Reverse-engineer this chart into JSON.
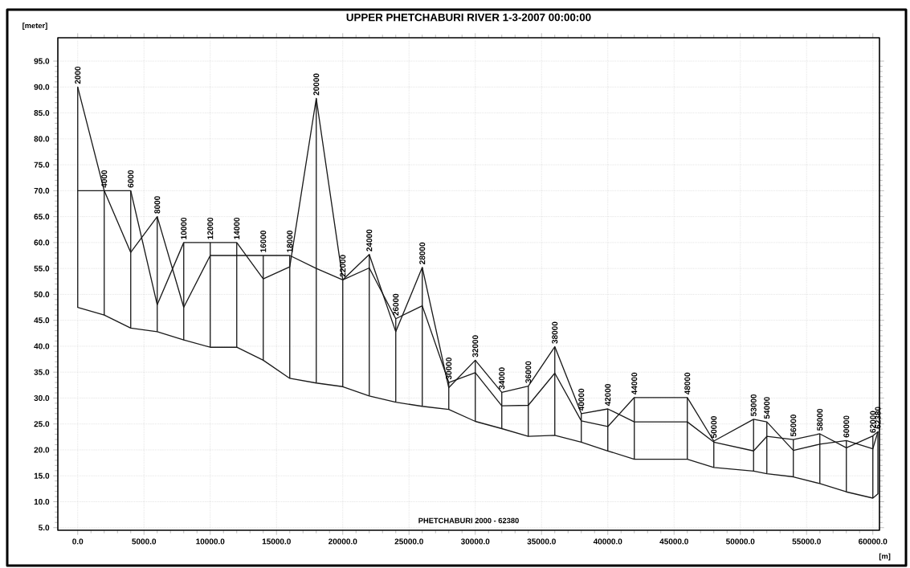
{
  "chart_data": {
    "type": "line",
    "title": "UPPER PHETCHABURI RIVER 1-3-2007 00:00:00",
    "xlabel": "[m]",
    "ylabel": "[meter]",
    "x": [
      0,
      2000,
      4000,
      6000,
      8000,
      10000,
      12000,
      14000,
      16000,
      18000,
      20000,
      22000,
      24000,
      26000,
      28000,
      30000,
      32000,
      34000,
      36000,
      38000,
      40000,
      42000,
      46000,
      48000,
      51000,
      52000,
      54000,
      56000,
      58000,
      60000,
      60380
    ],
    "series": [
      {
        "color": "#1a1a1a",
        "values": [
          47.5,
          46,
          43.5,
          42.8,
          41.2,
          39.8,
          39.8,
          37.3,
          33.8,
          32.9,
          32.2,
          30.4,
          29.2,
          28.4,
          27.8,
          25.5,
          24.1,
          22.6,
          22.8,
          21.5,
          19.8,
          18.2,
          18.2,
          16.6,
          15.9,
          15.4,
          14.8,
          13.5,
          11.9,
          10.7,
          11.5
        ]
      },
      {
        "color": "#1a1a1a",
        "values": [
          90,
          70,
          58.1,
          65,
          47.5,
          57.5,
          57.5,
          57.5,
          57.5,
          55,
          52.8,
          57.7,
          42.8,
          55.2,
          32.0,
          37.3,
          31.1,
          32.3,
          39.9,
          27.0,
          27.9,
          25.4,
          25.4,
          21.5,
          19.8,
          22.6,
          22.0,
          23.1,
          20.4,
          22.7,
          23.5
        ]
      },
      {
        "color": "#1a1a1a",
        "values": [
          70,
          70,
          70,
          48,
          60,
          60,
          60,
          53,
          55.3,
          87.8,
          52.8,
          55.1,
          45.3,
          47.8,
          33.0,
          34.9,
          28.5,
          28.6,
          34.8,
          25.6,
          24.5,
          30.1,
          30.1,
          21.7,
          25.9,
          25.4,
          19.9,
          21.1,
          21.8,
          20.2,
          23.5
        ]
      }
    ],
    "annotations": [
      {
        "text": "2000",
        "x": 0,
        "y": 90
      },
      {
        "text": "4000",
        "x": 2000,
        "y": 70
      },
      {
        "text": "6000",
        "x": 4000,
        "y": 70
      },
      {
        "text": "8000",
        "x": 6000,
        "y": 65
      },
      {
        "text": "10000",
        "x": 8000,
        "y": 60
      },
      {
        "text": "12000",
        "x": 10000,
        "y": 60
      },
      {
        "text": "14000",
        "x": 12000,
        "y": 60
      },
      {
        "text": "16000",
        "x": 14000,
        "y": 57.5
      },
      {
        "text": "18000",
        "x": 16000,
        "y": 57.5
      },
      {
        "text": "20000",
        "x": 18000,
        "y": 87.8
      },
      {
        "text": "22000",
        "x": 20000,
        "y": 52.8
      },
      {
        "text": "24000",
        "x": 22000,
        "y": 57.7
      },
      {
        "text": "26000",
        "x": 24000,
        "y": 45.3
      },
      {
        "text": "28000",
        "x": 26000,
        "y": 55.2
      },
      {
        "text": "30000",
        "x": 28000,
        "y": 33.0
      },
      {
        "text": "32000",
        "x": 30000,
        "y": 37.3
      },
      {
        "text": "34000",
        "x": 32000,
        "y": 31.1
      },
      {
        "text": "36000",
        "x": 34000,
        "y": 32.3
      },
      {
        "text": "38000",
        "x": 36000,
        "y": 39.9
      },
      {
        "text": "40000",
        "x": 38000,
        "y": 27.0
      },
      {
        "text": "42000",
        "x": 40000,
        "y": 27.9
      },
      {
        "text": "44000",
        "x": 42000,
        "y": 30.1
      },
      {
        "text": "48000",
        "x": 46000,
        "y": 30.1
      },
      {
        "text": "50000",
        "x": 48000,
        "y": 21.7
      },
      {
        "text": "53000",
        "x": 51000,
        "y": 25.9
      },
      {
        "text": "54000",
        "x": 52000,
        "y": 25.4
      },
      {
        "text": "56000",
        "x": 54000,
        "y": 22.0
      },
      {
        "text": "58000",
        "x": 56000,
        "y": 23.1
      },
      {
        "text": "60000",
        "x": 58000,
        "y": 21.8
      },
      {
        "text": "62000",
        "x": 60000,
        "y": 22.7
      },
      {
        "text": "62380",
        "x": 60380,
        "y": 23.5
      },
      "PHETCHABURI 2000 - 62380"
    ],
    "xlim": [
      -1500,
      60500
    ],
    "ylim": [
      4.5,
      99.5
    ],
    "xticks": [
      {
        "value": 0,
        "label": "0.0"
      },
      {
        "value": 5000,
        "label": "5000.0"
      },
      {
        "value": 10000,
        "label": "10000.0"
      },
      {
        "value": 15000,
        "label": "15000.0"
      },
      {
        "value": 20000,
        "label": "20000.0"
      },
      {
        "value": 25000,
        "label": "25000.0"
      },
      {
        "value": 30000,
        "label": "30000.0"
      },
      {
        "value": 35000,
        "label": "35000.0"
      },
      {
        "value": 40000,
        "label": "40000.0"
      },
      {
        "value": 45000,
        "label": "45000.0"
      },
      {
        "value": 50000,
        "label": "50000.0"
      },
      {
        "value": 55000,
        "label": "55000.0"
      },
      {
        "value": 60000,
        "label": "60000.0"
      }
    ],
    "yticks": [
      {
        "value": 5,
        "label": "5.0"
      },
      {
        "value": 10,
        "label": "10.0"
      },
      {
        "value": 15,
        "label": "15.0"
      },
      {
        "value": 20,
        "label": "20.0"
      },
      {
        "value": 25,
        "label": "25.0"
      },
      {
        "value": 30,
        "label": "30.0"
      },
      {
        "value": 35,
        "label": "35.0"
      },
      {
        "value": 40,
        "label": "40.0"
      },
      {
        "value": 45,
        "label": "45.0"
      },
      {
        "value": 50,
        "label": "50.0"
      },
      {
        "value": 55,
        "label": "55.0"
      },
      {
        "value": 60,
        "label": "60.0"
      },
      {
        "value": 65,
        "label": "65.0"
      },
      {
        "value": 70,
        "label": "70.0"
      },
      {
        "value": 75,
        "label": "75.0"
      },
      {
        "value": 80,
        "label": "80.0"
      },
      {
        "value": 85,
        "label": "85.0"
      },
      {
        "value": 90,
        "label": "90.0"
      },
      {
        "value": 95,
        "label": "95.0"
      }
    ],
    "grid": true
  }
}
